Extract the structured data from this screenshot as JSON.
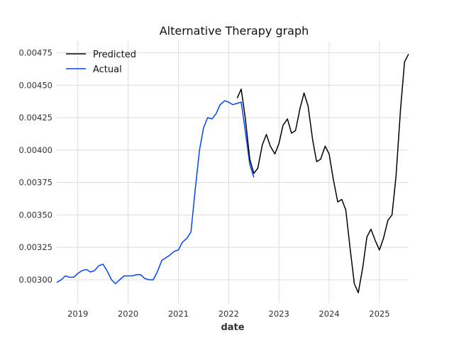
{
  "chart_data": {
    "type": "line",
    "title": "Alternative Therapy graph",
    "xlabel": "date",
    "ylabel": "",
    "x_ticks": [
      "2019",
      "2020",
      "2021",
      "2022",
      "2023",
      "2024",
      "2025"
    ],
    "y_ticks": [
      "0.00300",
      "0.00325",
      "0.00350",
      "0.00375",
      "0.00400",
      "0.00425",
      "0.00450",
      "0.00475"
    ],
    "xlim": [
      2018.58,
      2025.58
    ],
    "ylim": [
      0.00282,
      0.00484
    ],
    "grid": true,
    "legend_position": "top-left",
    "colors": {
      "predicted": "#000000",
      "actual": "#0044ff",
      "grid": "#dddddd"
    },
    "series": [
      {
        "name": "Predicted",
        "x": [
          2022.17,
          2022.25,
          2022.33,
          2022.42,
          2022.5,
          2022.58,
          2022.67,
          2022.75,
          2022.83,
          2022.92,
          2023.0,
          2023.08,
          2023.17,
          2023.25,
          2023.33,
          2023.42,
          2023.5,
          2023.58,
          2023.67,
          2023.75,
          2023.83,
          2023.92,
          2024.0,
          2024.08,
          2024.17,
          2024.25,
          2024.33,
          2024.42,
          2024.5,
          2024.58,
          2024.67,
          2024.75,
          2024.83,
          2024.92,
          2025.0,
          2025.08,
          2025.17,
          2025.25,
          2025.33,
          2025.42,
          2025.5,
          2025.58
        ],
        "values": [
          0.0044,
          0.00447,
          0.00425,
          0.00393,
          0.00382,
          0.00386,
          0.00404,
          0.00412,
          0.00403,
          0.00397,
          0.00405,
          0.00419,
          0.00424,
          0.00413,
          0.00415,
          0.00432,
          0.00444,
          0.00434,
          0.00408,
          0.00391,
          0.00393,
          0.00403,
          0.00397,
          0.00378,
          0.0036,
          0.00362,
          0.00354,
          0.00323,
          0.00297,
          0.0029,
          0.0031,
          0.00333,
          0.00339,
          0.0033,
          0.00323,
          0.00332,
          0.00346,
          0.0035,
          0.0038,
          0.00432,
          0.00468,
          0.00474
        ]
      },
      {
        "name": "Actual",
        "x": [
          2018.58,
          2018.67,
          2018.75,
          2018.83,
          2018.92,
          2019.0,
          2019.08,
          2019.17,
          2019.25,
          2019.33,
          2019.42,
          2019.5,
          2019.58,
          2019.67,
          2019.75,
          2019.83,
          2019.92,
          2020.0,
          2020.08,
          2020.17,
          2020.25,
          2020.33,
          2020.42,
          2020.5,
          2020.58,
          2020.67,
          2020.75,
          2020.83,
          2020.92,
          2021.0,
          2021.08,
          2021.17,
          2021.25,
          2021.33,
          2021.42,
          2021.5,
          2021.58,
          2021.67,
          2021.75,
          2021.83,
          2021.92,
          2022.0,
          2022.08,
          2022.17,
          2022.25,
          2022.33,
          2022.42,
          2022.5
        ],
        "values": [
          0.00298,
          0.003,
          0.00303,
          0.00302,
          0.00302,
          0.00305,
          0.00307,
          0.00308,
          0.00306,
          0.00307,
          0.00311,
          0.00312,
          0.00307,
          0.003,
          0.00297,
          0.003,
          0.00303,
          0.00303,
          0.00303,
          0.00304,
          0.00304,
          0.00301,
          0.003,
          0.003,
          0.00306,
          0.00315,
          0.00317,
          0.00319,
          0.00322,
          0.00323,
          0.00329,
          0.00332,
          0.00337,
          0.00368,
          0.004,
          0.00417,
          0.00425,
          0.00424,
          0.00428,
          0.00435,
          0.00438,
          0.00437,
          0.00435,
          0.00436,
          0.00437,
          0.00415,
          0.00389,
          0.00379
        ]
      }
    ]
  }
}
